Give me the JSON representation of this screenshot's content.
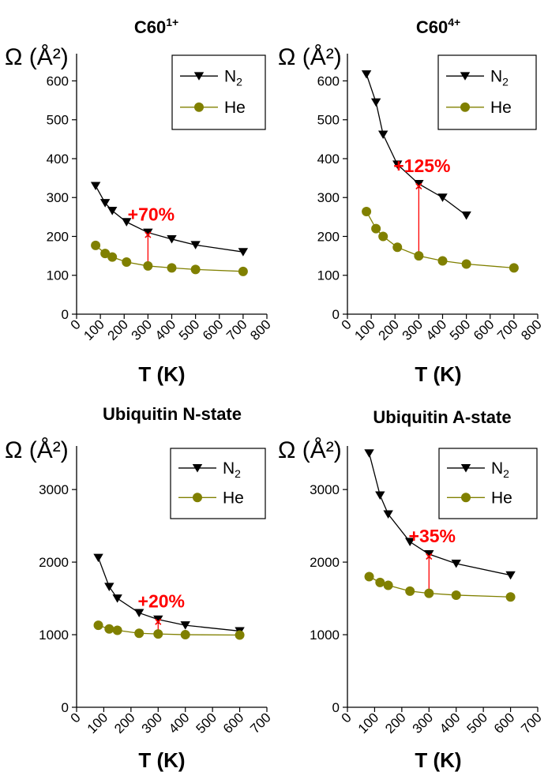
{
  "chart_data": [
    {
      "type": "line",
      "title": "C60",
      "title_sup": "1+",
      "ylabel": "Ω (Å²)",
      "xlabel": "T (K)",
      "xlim": [
        0,
        800
      ],
      "ylim": [
        0,
        670
      ],
      "xticks": [
        0,
        100,
        200,
        300,
        400,
        500,
        600,
        700,
        800
      ],
      "yticks": [
        0,
        100,
        200,
        300,
        400,
        500,
        600
      ],
      "legend": "top-right",
      "series": [
        {
          "name": "N",
          "name_sub": "2",
          "color": "#000000",
          "marker": "triangle-down",
          "x": [
            80,
            120,
            150,
            210,
            300,
            400,
            500,
            700
          ],
          "y": [
            330,
            286,
            266,
            237,
            210,
            193,
            178,
            160
          ]
        },
        {
          "name": "He",
          "color": "#808000",
          "marker": "circle",
          "x": [
            80,
            120,
            150,
            210,
            300,
            400,
            500,
            700
          ],
          "y": [
            177,
            156,
            147,
            134,
            124,
            119,
            115,
            110
          ]
        }
      ],
      "annotation": {
        "text": "+70%",
        "x": 300,
        "y_low": 124,
        "y_high": 210,
        "color": "#ff0000"
      }
    },
    {
      "type": "line",
      "title": "C60",
      "title_sup": "4+",
      "ylabel": "Ω (Å²)",
      "xlabel": "T (K)",
      "xlim": [
        0,
        800
      ],
      "ylim": [
        0,
        670
      ],
      "xticks": [
        0,
        100,
        200,
        300,
        400,
        500,
        600,
        700,
        800
      ],
      "yticks": [
        0,
        100,
        200,
        300,
        400,
        500,
        600
      ],
      "legend": "top-right",
      "series": [
        {
          "name": "N",
          "name_sub": "2",
          "color": "#000000",
          "marker": "triangle-down",
          "x": [
            80,
            120,
            150,
            210,
            300,
            400,
            500
          ],
          "y": [
            617,
            545,
            462,
            385,
            335,
            300,
            254
          ]
        },
        {
          "name": "He",
          "color": "#808000",
          "marker": "circle",
          "x": [
            80,
            120,
            150,
            210,
            300,
            400,
            500,
            700
          ],
          "y": [
            264,
            220,
            200,
            172,
            150,
            137,
            129,
            119
          ]
        }
      ],
      "annotation": {
        "text": "+125%",
        "x": 300,
        "y_low": 150,
        "y_high": 335,
        "color": "#ff0000"
      }
    },
    {
      "type": "line",
      "title": "Ubiquitin N-state",
      "ylabel": "Ω (Å²)",
      "xlabel": "T (K)",
      "xlim": [
        0,
        700
      ],
      "ylim": [
        0,
        3600
      ],
      "xticks": [
        0,
        100,
        200,
        300,
        400,
        500,
        600,
        700
      ],
      "yticks": [
        0,
        1000,
        2000,
        3000
      ],
      "legend": "top-right",
      "series": [
        {
          "name": "N",
          "name_sub": "2",
          "color": "#000000",
          "marker": "triangle-down",
          "x": [
            80,
            120,
            150,
            230,
            300,
            400,
            600
          ],
          "y": [
            2060,
            1660,
            1500,
            1300,
            1210,
            1130,
            1050
          ]
        },
        {
          "name": "He",
          "color": "#808000",
          "marker": "circle",
          "x": [
            80,
            120,
            150,
            230,
            300,
            400,
            600
          ],
          "y": [
            1130,
            1080,
            1060,
            1020,
            1010,
            1000,
            995
          ]
        }
      ],
      "annotation": {
        "text": "+20%",
        "x": 300,
        "y_low": 1010,
        "y_high": 1210,
        "color": "#ff0000"
      }
    },
    {
      "type": "line",
      "title": "Ubiquitin A-state",
      "ylabel": "Ω (Å²)",
      "xlabel": "T (K)",
      "xlim": [
        0,
        700
      ],
      "ylim": [
        0,
        3600
      ],
      "xticks": [
        0,
        100,
        200,
        300,
        400,
        500,
        600,
        700
      ],
      "yticks": [
        0,
        1000,
        2000,
        3000
      ],
      "legend": "top-right",
      "series": [
        {
          "name": "N",
          "name_sub": "2",
          "color": "#000000",
          "marker": "triangle-down",
          "x": [
            80,
            120,
            150,
            230,
            300,
            400,
            600
          ],
          "y": [
            3500,
            2920,
            2660,
            2280,
            2110,
            1980,
            1820
          ]
        },
        {
          "name": "He",
          "color": "#808000",
          "marker": "circle",
          "x": [
            80,
            120,
            150,
            230,
            300,
            400,
            600
          ],
          "y": [
            1800,
            1720,
            1680,
            1600,
            1570,
            1545,
            1520
          ]
        }
      ],
      "annotation": {
        "text": "+35%",
        "x": 300,
        "y_low": 1570,
        "y_high": 2110,
        "color": "#ff0000"
      }
    }
  ]
}
